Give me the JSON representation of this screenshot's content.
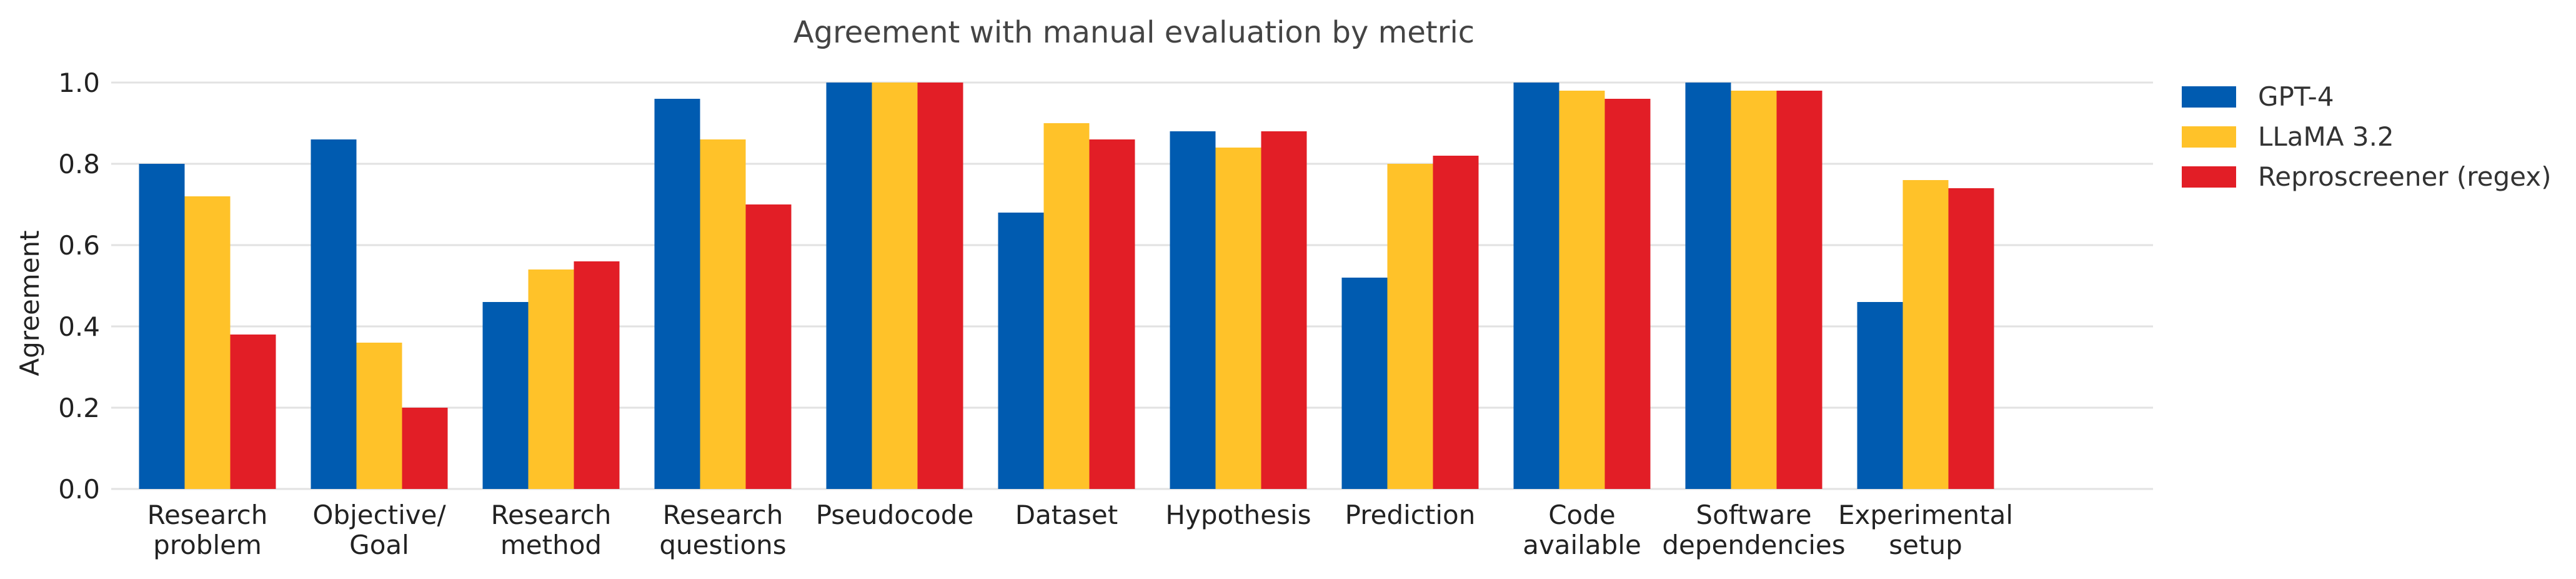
{
  "chart_data": {
    "type": "bar",
    "title": "Agreement with manual evaluation by metric",
    "xlabel": "",
    "ylabel": "Agreement",
    "ylim": [
      0,
      1.0
    ],
    "yticks": [
      "0.0",
      "0.2",
      "0.4",
      "0.6",
      "0.8",
      "1.0"
    ],
    "grid": true,
    "legend_position": "top-right, outside plot",
    "categories": [
      [
        "Research",
        "problem"
      ],
      [
        "Objective/",
        "Goal"
      ],
      [
        "Research",
        "method"
      ],
      [
        "Research",
        "questions"
      ],
      [
        "Pseudocode"
      ],
      [
        "Dataset"
      ],
      [
        "Hypothesis"
      ],
      [
        "Prediction"
      ],
      [
        "Code",
        "available"
      ],
      [
        "Software",
        "dependencies"
      ],
      [
        "Experimental",
        "setup"
      ]
    ],
    "series": [
      {
        "name": "GPT-4",
        "color": "#005BB0",
        "values": [
          0.8,
          0.86,
          0.46,
          0.96,
          1.0,
          0.68,
          0.88,
          0.52,
          1.0,
          1.0,
          0.46
        ]
      },
      {
        "name": "LLaMA 3.2",
        "color": "#FFC229",
        "values": [
          0.72,
          0.36,
          0.54,
          0.86,
          1.0,
          0.9,
          0.84,
          0.8,
          0.98,
          0.98,
          0.76
        ]
      },
      {
        "name": "Reproscreener (regex)",
        "color": "#E21E26",
        "values": [
          0.38,
          0.2,
          0.56,
          0.7,
          1.0,
          0.86,
          0.88,
          0.82,
          0.96,
          0.98,
          0.74
        ]
      }
    ]
  }
}
